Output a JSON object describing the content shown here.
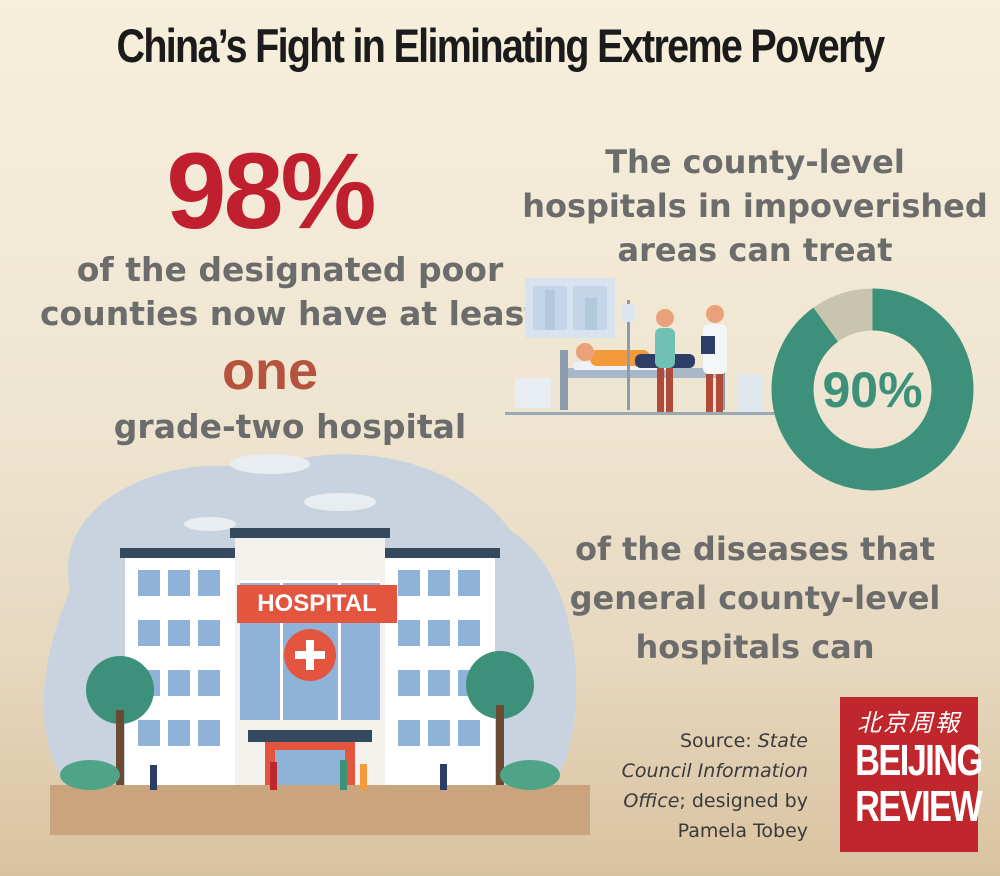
{
  "title": "China’s Fight in Eliminating Extreme Poverty",
  "stat_left": {
    "percent": "98%",
    "line1": "of the designated poor",
    "line2": "counties now have at least",
    "emphasis": "one",
    "line3": "grade-two hospital"
  },
  "stat_right": {
    "intro1": "The county-level",
    "intro2": "hospitals in impoverished",
    "intro3": "areas can treat",
    "percent_label": "90%",
    "percent_value": 90,
    "outro1": "of the diseases that",
    "outro2": "general county-level",
    "outro3": "hospitals can"
  },
  "hospital_sign": "HOSPITAL",
  "source": {
    "prefix": "Source: ",
    "org1": "State",
    "org2": "Council Information",
    "org3": "Office",
    "suffix": "; designed by",
    "designer": "Pamela Tobey"
  },
  "logo": {
    "chinese": "北京周報",
    "line1": "BEIJING",
    "line2": "REVIEW"
  },
  "colors": {
    "accent_red": "#c01f2f",
    "accent_brown": "#b5533d",
    "donut_green": "#3d9079",
    "donut_remainder": "#c9c4ad",
    "text_gray": "#6c6c6c"
  },
  "icons": [
    "hospital-illustration",
    "patient-bed-illustration",
    "donut-chart"
  ]
}
